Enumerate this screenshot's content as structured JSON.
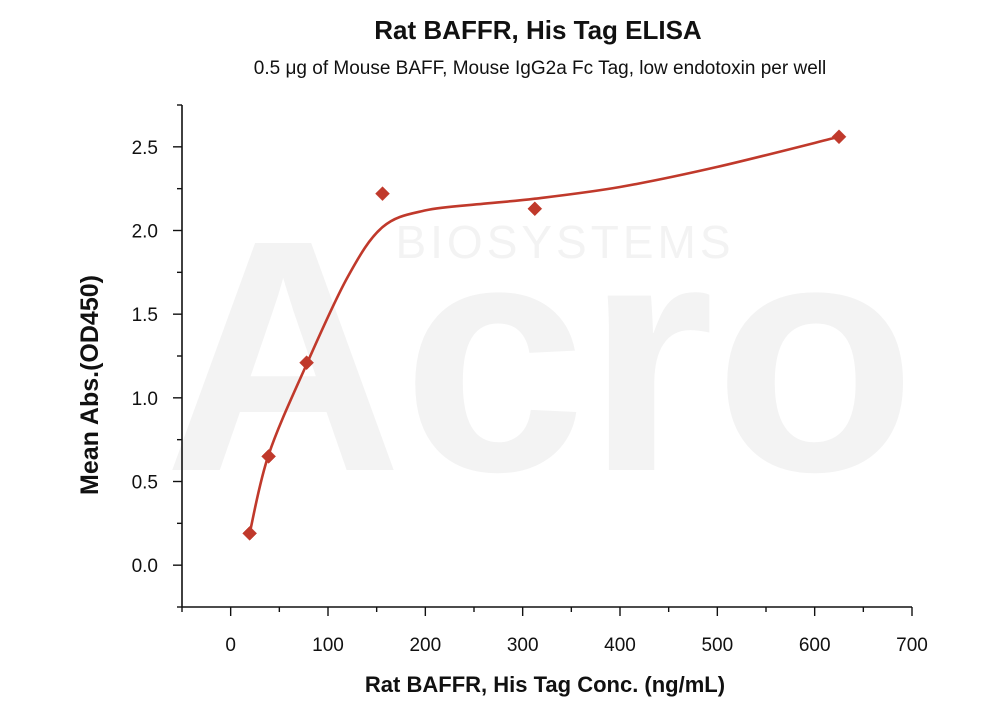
{
  "chart_data": {
    "type": "scatter",
    "title": "Rat BAFFR, His Tag ELISA",
    "subtitle": "0.5 μg of Mouse BAFF, Mouse IgG2a Fc Tag, low endotoxin per well",
    "xlabel": "Rat BAFFR, His Tag Conc. (ng/mL)",
    "ylabel": "Mean Abs.(OD450)",
    "xlim": [
      -50,
      700
    ],
    "ylim": [
      -0.25,
      2.75
    ],
    "x_ticks": [
      0,
      100,
      200,
      300,
      400,
      500,
      600,
      700
    ],
    "x_tick_labels": [
      "0",
      "100",
      "200",
      "300",
      "400",
      "500",
      "600",
      "700"
    ],
    "y_ticks": [
      0.0,
      0.5,
      1.0,
      1.5,
      2.0,
      2.5
    ],
    "y_tick_labels": [
      "0.0",
      "0.5",
      "1.0",
      "1.5",
      "2.0",
      "2.5"
    ],
    "grid": false,
    "legend": "none",
    "series": [
      {
        "marker": "diamond",
        "color": "#c0392b",
        "x": [
          19.5,
          39,
          78,
          156,
          312.5,
          625
        ],
        "y": [
          0.19,
          0.65,
          1.21,
          2.22,
          2.13,
          2.56
        ],
        "fit_curve": true
      }
    ],
    "watermark": {
      "brand": "Acro",
      "sub": "BIOSYSTEMS"
    }
  }
}
